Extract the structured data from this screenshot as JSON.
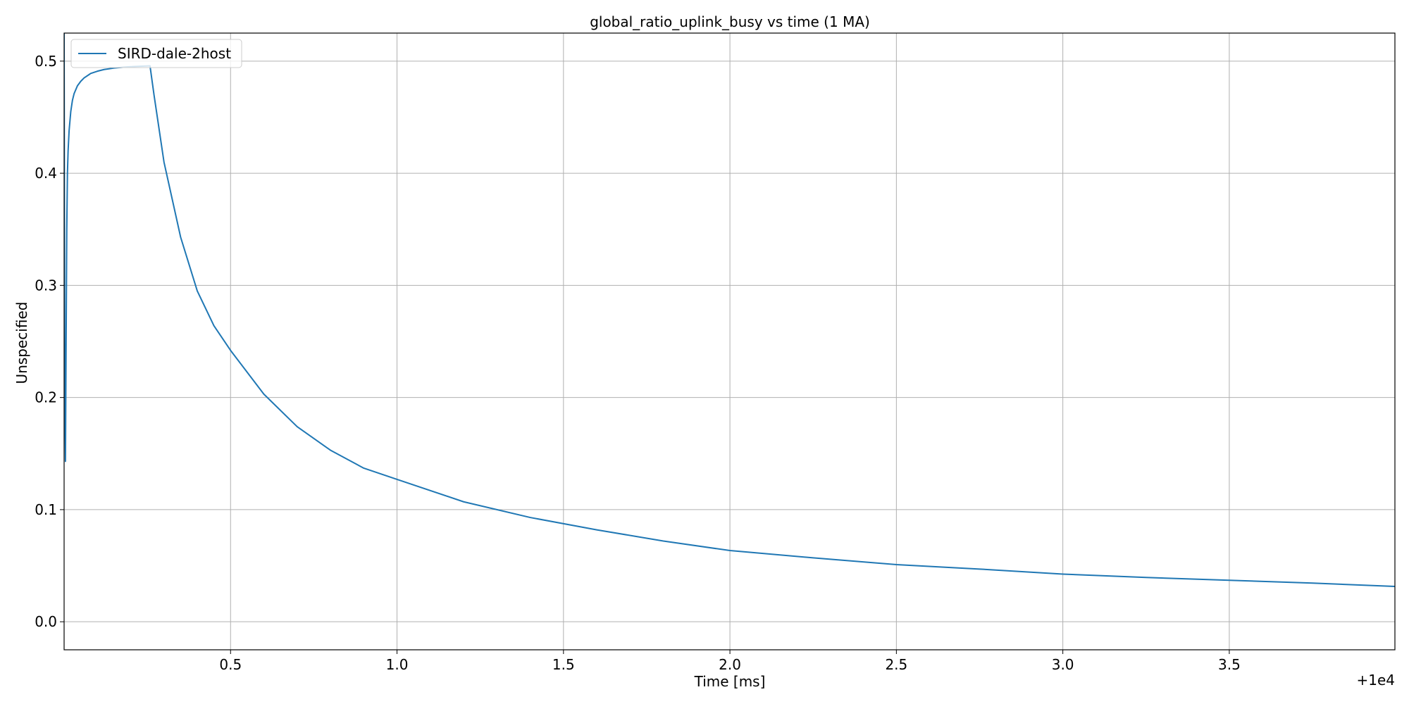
{
  "chart_data": {
    "type": "line",
    "title": "global_ratio_uplink_busy vs time (1 MA)",
    "xlabel": "Time [ms]",
    "ylabel": "Unspecified",
    "x_offset_label": "+1e4",
    "xlim": [
      0.0,
      3.9975
    ],
    "ylim": [
      -0.025,
      0.525
    ],
    "xticks": [
      0.5,
      1.0,
      1.5,
      2.0,
      2.5,
      3.0,
      3.5
    ],
    "xtick_labels": [
      "0.5",
      "1.0",
      "1.5",
      "2.0",
      "2.5",
      "3.0",
      "3.5"
    ],
    "yticks": [
      0.0,
      0.1,
      0.2,
      0.3,
      0.4,
      0.5
    ],
    "ytick_labels": [
      "0.0",
      "0.1",
      "0.2",
      "0.3",
      "0.4",
      "0.5"
    ],
    "grid": true,
    "legend_position": "upper-left",
    "series": [
      {
        "name": "SIRD-dale-2host",
        "color": "#1f77b4",
        "x": [
          0.0,
          0.002,
          0.004,
          0.006,
          0.008,
          0.01,
          0.012,
          0.015,
          0.02,
          0.025,
          0.03,
          0.04,
          0.05,
          0.06,
          0.08,
          0.1,
          0.12,
          0.15,
          0.18,
          0.21,
          0.24,
          0.258,
          0.27,
          0.3,
          0.35,
          0.4,
          0.45,
          0.5,
          0.6,
          0.7,
          0.8,
          0.9,
          1.0,
          1.2,
          1.4,
          1.6,
          1.8,
          2.0,
          2.25,
          2.5,
          2.75,
          3.0,
          3.25,
          3.5,
          3.75,
          3.9975
        ],
        "y": [
          0.525,
          0.2,
          0.143,
          0.25,
          0.35,
          0.4,
          0.42,
          0.438,
          0.455,
          0.465,
          0.471,
          0.478,
          0.482,
          0.485,
          0.489,
          0.491,
          0.4925,
          0.4938,
          0.4946,
          0.4952,
          0.4956,
          0.4958,
          0.47,
          0.41,
          0.343,
          0.295,
          0.264,
          0.242,
          0.203,
          0.174,
          0.153,
          0.137,
          0.127,
          0.107,
          0.093,
          0.082,
          0.072,
          0.0635,
          0.057,
          0.051,
          0.047,
          0.0425,
          0.0395,
          0.037,
          0.0345,
          0.0315
        ]
      }
    ]
  }
}
